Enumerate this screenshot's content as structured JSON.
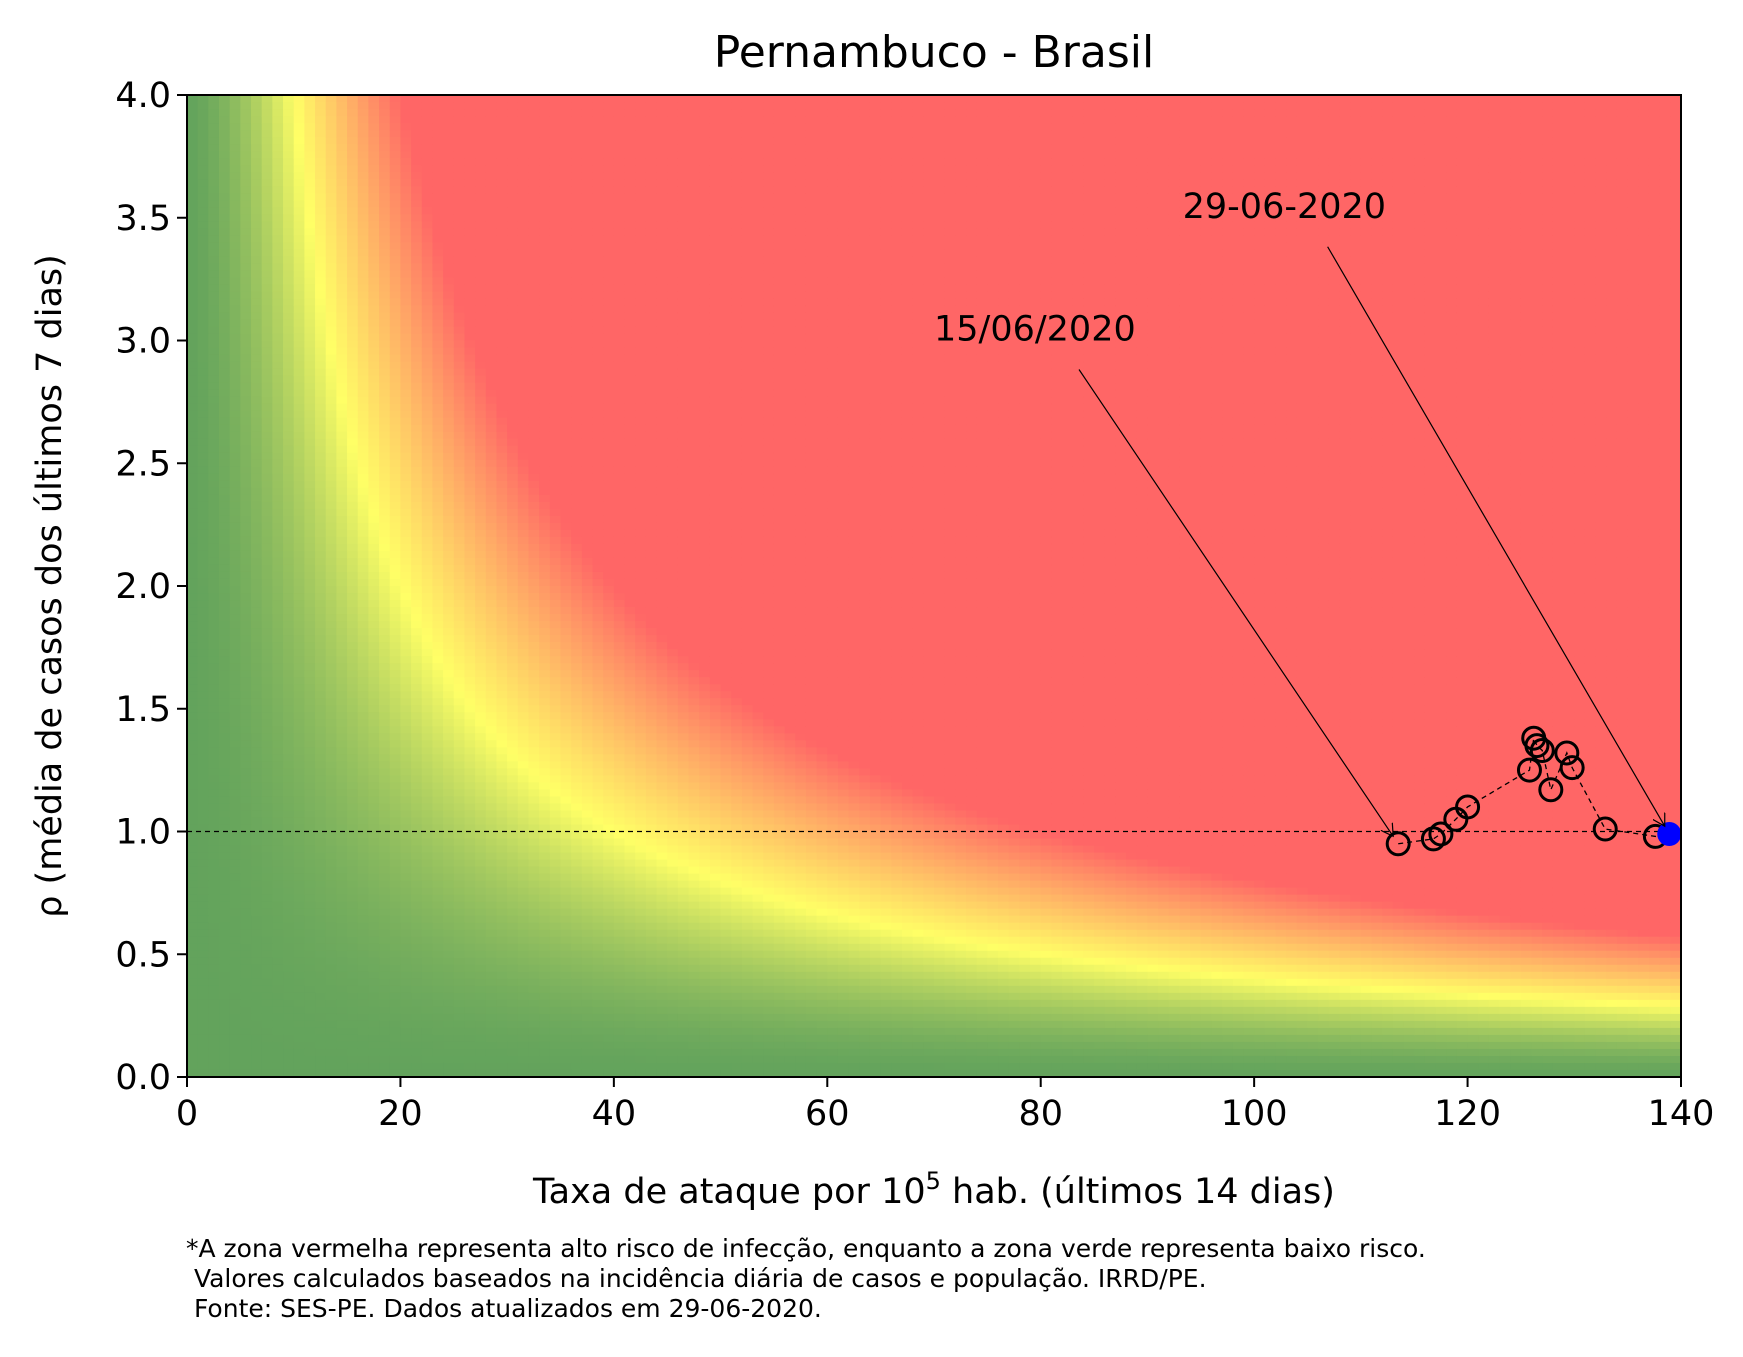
{
  "chart_data": {
    "type": "scatter",
    "title": "Pernambuco - Brasil",
    "xlabel_prefix": "Taxa de ataque por 10",
    "xlabel_sup": "5",
    "xlabel_suffix": " hab. (últimos 14 dias)",
    "ylabel": "ρ (média de casos dos últimos 7 dias)",
    "xlim": [
      0,
      140
    ],
    "ylim": [
      0,
      4
    ],
    "xticks": [
      0,
      20,
      40,
      60,
      80,
      100,
      120,
      140
    ],
    "yticks": [
      0.0,
      0.5,
      1.0,
      1.5,
      2.0,
      2.5,
      3.0,
      3.5,
      4.0
    ],
    "ytick_labels": [
      "0.0",
      "0.5",
      "1.0",
      "1.5",
      "2.0",
      "2.5",
      "3.0",
      "3.5",
      "4.0"
    ],
    "reference_line_y": 1.0,
    "background": "risk colormap of x·ρ: green (low) → yellow → red (high)",
    "colors": {
      "low": "#63a35c",
      "mid": "#ffff66",
      "high": "#ff6666",
      "current": "#0000ff"
    },
    "series": [
      {
        "marker": "open-circle",
        "points": [
          {
            "x": 113.5,
            "y": 0.95
          },
          {
            "x": 116.8,
            "y": 0.97
          },
          {
            "x": 117.5,
            "y": 0.99
          },
          {
            "x": 118.9,
            "y": 1.05
          },
          {
            "x": 120.0,
            "y": 1.1
          },
          {
            "x": 125.8,
            "y": 1.25
          },
          {
            "x": 126.2,
            "y": 1.38
          },
          {
            "x": 126.5,
            "y": 1.35
          },
          {
            "x": 127.0,
            "y": 1.33
          },
          {
            "x": 127.8,
            "y": 1.17
          },
          {
            "x": 129.3,
            "y": 1.32
          },
          {
            "x": 129.8,
            "y": 1.26
          },
          {
            "x": 132.9,
            "y": 1.01
          },
          {
            "x": 137.6,
            "y": 0.98
          }
        ]
      },
      {
        "marker": "filled-circle",
        "points": [
          {
            "x": 138.9,
            "y": 0.99
          }
        ]
      }
    ],
    "annotations": [
      {
        "text": "15/06/2020",
        "text_x": 70,
        "text_y": 3.0,
        "target_x": 113.5,
        "target_y": 0.95
      },
      {
        "text": "29-06-2020",
        "text_x": 93.3,
        "text_y": 3.5,
        "target_x": 138.9,
        "target_y": 0.99
      }
    ]
  },
  "footnote": {
    "line1": "*A zona vermelha representa alto risco de infecção, enquanto a zona verde representa baixo risco.",
    "line2": " Valores calculados baseados na incidência diária de casos e população. IRRD/PE.",
    "line3": " Fonte: SES-PE. Dados atualizados em 29-06-2020."
  }
}
